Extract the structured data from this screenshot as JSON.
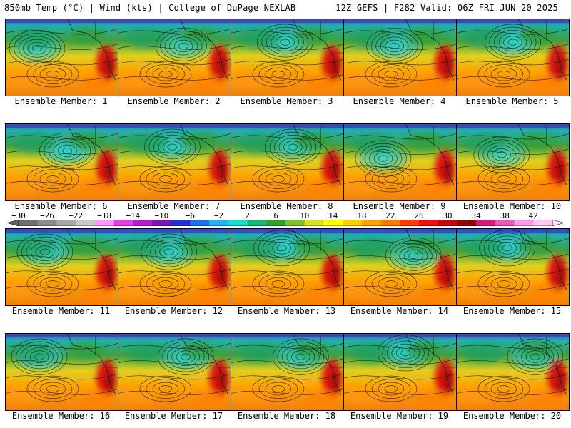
{
  "header": {
    "left": "850mb Temp (°C) | Wind (kts) | College of DuPage NEXLAB",
    "right": "12Z GEFS | F282 Valid: 06Z FRI JUN 20 2025"
  },
  "colorbar": {
    "labels": [
      "-30",
      "-26",
      "-22",
      "-18",
      "-14",
      "-10",
      "-6",
      "-2",
      "2",
      "6",
      "10",
      "14",
      "18",
      "22",
      "26",
      "30",
      "34",
      "38",
      "42"
    ],
    "colors": [
      "#6e6e6e",
      "#8c8c8c",
      "#a8a8a8",
      "#c8c8c8",
      "#ff99ff",
      "#e040e0",
      "#b020c8",
      "#7818b0",
      "#2030c8",
      "#2070e8",
      "#28b0f0",
      "#20d8c8",
      "#18b478",
      "#30a030",
      "#80c030",
      "#d8e020",
      "#ffff00",
      "#ffd000",
      "#ffa000",
      "#ff7800",
      "#ff3c00",
      "#e81010",
      "#b80c0c",
      "#880808",
      "#d21e78",
      "#e65ab4",
      "#ff9ae6",
      "#ffc8f0"
    ]
  },
  "members": [
    {
      "label": "Ensemble Member: 1",
      "cold": 0.55,
      "lowx": 0.28,
      "lowy": 0.38
    },
    {
      "label": "Ensemble Member: 2",
      "cold": 0.5,
      "lowx": 0.58,
      "lowy": 0.35
    },
    {
      "label": "Ensemble Member: 3",
      "cold": 0.55,
      "lowx": 0.48,
      "lowy": 0.3
    },
    {
      "label": "Ensemble Member: 4",
      "cold": 0.6,
      "lowx": 0.45,
      "lowy": 0.35
    },
    {
      "label": "Ensemble Member: 5",
      "cold": 0.6,
      "lowx": 0.5,
      "lowy": 0.3
    },
    {
      "label": "Ensemble Member: 6",
      "cold": 0.65,
      "lowx": 0.55,
      "lowy": 0.35
    },
    {
      "label": "Ensemble Member: 7",
      "cold": 0.55,
      "lowx": 0.48,
      "lowy": 0.3
    },
    {
      "label": "Ensemble Member: 8",
      "cold": 0.5,
      "lowx": 0.55,
      "lowy": 0.3
    },
    {
      "label": "Ensemble Member: 9",
      "cold": 0.55,
      "lowx": 0.35,
      "lowy": 0.45
    },
    {
      "label": "Ensemble Member: 10",
      "cold": 0.5,
      "lowx": 0.4,
      "lowy": 0.4
    },
    {
      "label": "Ensemble Member: 11",
      "cold": 0.6,
      "lowx": 0.35,
      "lowy": 0.3
    },
    {
      "label": "Ensemble Member: 12",
      "cold": 0.6,
      "lowx": 0.45,
      "lowy": 0.3
    },
    {
      "label": "Ensemble Member: 13",
      "cold": 0.65,
      "lowx": 0.45,
      "lowy": 0.25
    },
    {
      "label": "Ensemble Member: 14",
      "cold": 0.55,
      "lowx": 0.62,
      "lowy": 0.35
    },
    {
      "label": "Ensemble Member: 15",
      "cold": 0.6,
      "lowx": 0.45,
      "lowy": 0.25
    },
    {
      "label": "Ensemble Member: 16",
      "cold": 0.6,
      "lowx": 0.3,
      "lowy": 0.3
    },
    {
      "label": "Ensemble Member: 17",
      "cold": 0.6,
      "lowx": 0.6,
      "lowy": 0.3
    },
    {
      "label": "Ensemble Member: 18",
      "cold": 0.55,
      "lowx": 0.62,
      "lowy": 0.3
    },
    {
      "label": "Ensemble Member: 19",
      "cold": 0.6,
      "lowx": 0.55,
      "lowy": 0.25
    },
    {
      "label": "Ensemble Member: 20",
      "cold": 0.55,
      "lowx": 0.7,
      "lowy": 0.3
    }
  ]
}
